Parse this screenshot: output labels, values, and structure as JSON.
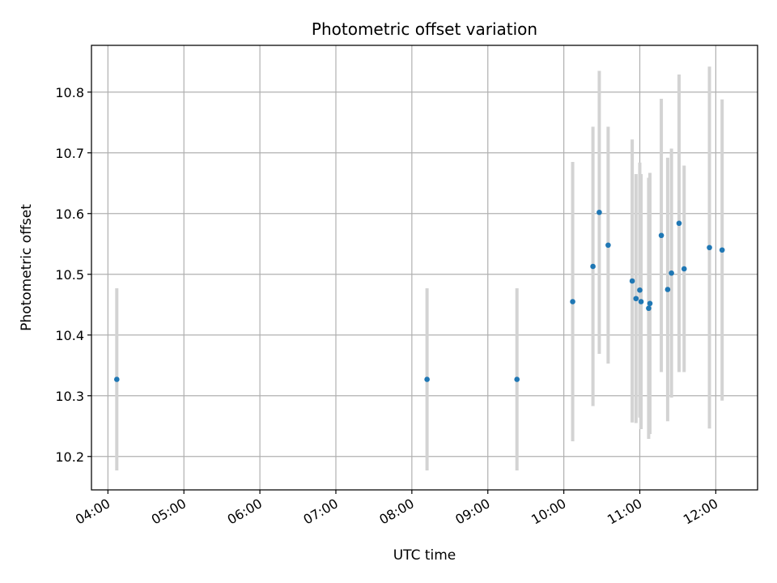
{
  "chart_data": {
    "type": "scatter",
    "title": "Photometric offset variation",
    "xlabel": "UTC time",
    "ylabel": "Photometric offset",
    "xlim": [
      "03:47",
      "12:33"
    ],
    "ylim": [
      10.145,
      10.877
    ],
    "x_ticks": [
      "04:00",
      "05:00",
      "06:00",
      "07:00",
      "08:00",
      "09:00",
      "10:00",
      "11:00",
      "12:00"
    ],
    "y_ticks": [
      10.2,
      10.3,
      10.4,
      10.5,
      10.6,
      10.7,
      10.8
    ],
    "grid": true,
    "colors": {
      "point": "#1f77b4",
      "errorbar": "#d3d3d3",
      "grid": "#b0b0b0"
    },
    "points": [
      {
        "x": "04:07",
        "y": 10.327,
        "err": 0.15
      },
      {
        "x": "08:12",
        "y": 10.327,
        "err": 0.15
      },
      {
        "x": "09:23",
        "y": 10.327,
        "err": 0.15
      },
      {
        "x": "10:07",
        "y": 10.455,
        "err": 0.23
      },
      {
        "x": "10:23",
        "y": 10.513,
        "err": 0.23
      },
      {
        "x": "10:28",
        "y": 10.602,
        "err": 0.233
      },
      {
        "x": "10:35",
        "y": 10.548,
        "err": 0.195
      },
      {
        "x": "10:54",
        "y": 10.489,
        "err": 0.233
      },
      {
        "x": "10:57",
        "y": 10.46,
        "err": 0.205
      },
      {
        "x": "11:00",
        "y": 10.474,
        "err": 0.21
      },
      {
        "x": "11:01",
        "y": 10.455,
        "err": 0.21
      },
      {
        "x": "11:07",
        "y": 10.444,
        "err": 0.215
      },
      {
        "x": "11:08",
        "y": 10.452,
        "err": 0.215
      },
      {
        "x": "11:17",
        "y": 10.564,
        "err": 0.225
      },
      {
        "x": "11:22",
        "y": 10.475,
        "err": 0.217
      },
      {
        "x": "11:25",
        "y": 10.502,
        "err": 0.205
      },
      {
        "x": "11:31",
        "y": 10.584,
        "err": 0.245
      },
      {
        "x": "11:35",
        "y": 10.509,
        "err": 0.17
      },
      {
        "x": "11:55",
        "y": 10.544,
        "err": 0.298
      },
      {
        "x": "12:05",
        "y": 10.54,
        "err": 0.248
      }
    ]
  }
}
